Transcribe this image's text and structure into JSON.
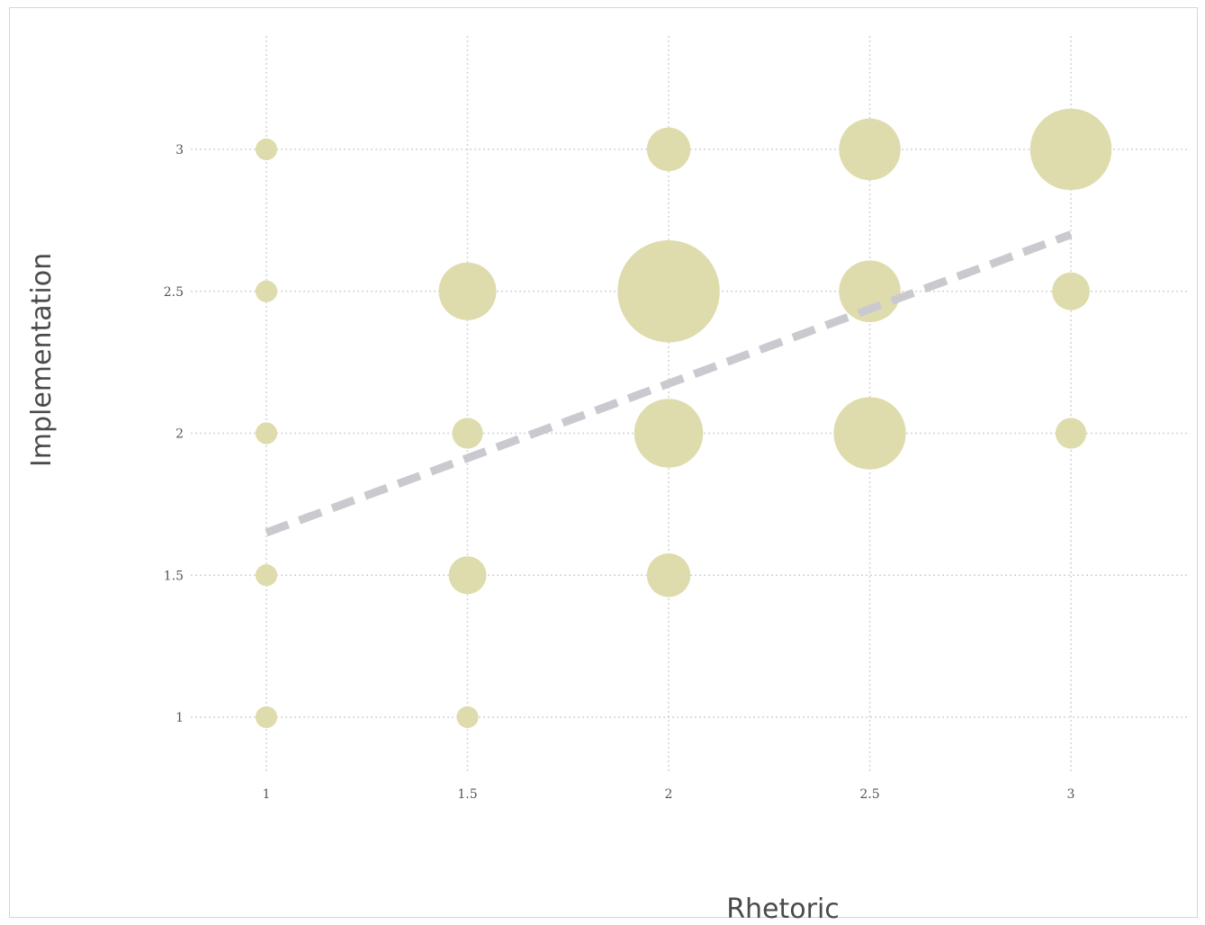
{
  "chart_data": {
    "type": "scatter",
    "subtype": "bubble",
    "title": "",
    "xlabel": "Rhetoric",
    "ylabel": "Implementation",
    "x_ticks": [
      "1",
      "1.5",
      "2",
      "2.5",
      "3"
    ],
    "y_ticks": [
      "1",
      "1.5",
      "2",
      "2.5",
      "3"
    ],
    "xlim": [
      1,
      3
    ],
    "ylim": [
      1,
      3
    ],
    "grid": true,
    "bubble_color": "#dedcac",
    "trend_color": "#c9c9cf",
    "points": [
      {
        "x": 1,
        "y": 1,
        "size": 1
      },
      {
        "x": 1,
        "y": 1.5,
        "size": 1
      },
      {
        "x": 1,
        "y": 2,
        "size": 1
      },
      {
        "x": 1,
        "y": 2.5,
        "size": 1
      },
      {
        "x": 1,
        "y": 3,
        "size": 1
      },
      {
        "x": 1.5,
        "y": 1,
        "size": 1
      },
      {
        "x": 1.5,
        "y": 1.5,
        "size": 3
      },
      {
        "x": 1.5,
        "y": 2,
        "size": 2
      },
      {
        "x": 1.5,
        "y": 2.5,
        "size": 7
      },
      {
        "x": 2,
        "y": 1.5,
        "size": 4
      },
      {
        "x": 2,
        "y": 2,
        "size": 10
      },
      {
        "x": 2,
        "y": 2.5,
        "size": 22
      },
      {
        "x": 2,
        "y": 3,
        "size": 4
      },
      {
        "x": 2.5,
        "y": 2,
        "size": 11
      },
      {
        "x": 2.5,
        "y": 2.5,
        "size": 8
      },
      {
        "x": 2.5,
        "y": 3,
        "size": 8
      },
      {
        "x": 3,
        "y": 2,
        "size": 2
      },
      {
        "x": 3,
        "y": 2.5,
        "size": 3
      },
      {
        "x": 3,
        "y": 3,
        "size": 14
      }
    ],
    "trend_line": {
      "x": [
        1,
        3
      ],
      "y": [
        1.65,
        2.7
      ]
    }
  }
}
